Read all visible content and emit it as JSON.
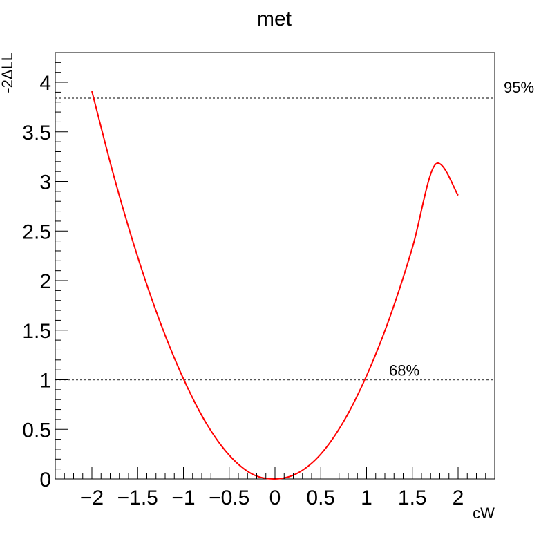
{
  "chart_data": {
    "type": "line",
    "title": "met",
    "xlabel": "cW",
    "ylabel": "-2ΔLL",
    "xlim": [
      -2.4,
      2.4
    ],
    "ylim": [
      0,
      4.3
    ],
    "x_ticks": [
      -2,
      -1.5,
      -1,
      -0.5,
      0,
      0.5,
      1,
      1.5,
      2
    ],
    "x_tick_labels": [
      "−2",
      "−1.5",
      "−1",
      "−0.5",
      "0",
      "0.5",
      "1",
      "1.5",
      "2"
    ],
    "y_ticks": [
      0,
      0.5,
      1,
      1.5,
      2,
      2.5,
      3,
      3.5,
      4
    ],
    "y_tick_labels": [
      "0",
      "0.5",
      "1",
      "1.5",
      "2",
      "2.5",
      "3",
      "3.5",
      "4"
    ],
    "grid": false,
    "series": [
      {
        "color": "#ff0000",
        "x": [
          -2.0,
          -1.75,
          -1.5,
          -1.25,
          -1.0,
          -0.75,
          -0.5,
          -0.25,
          0.0,
          0.25,
          0.5,
          0.75,
          1.0,
          1.25,
          1.5,
          1.75,
          2.0
        ],
        "y": [
          3.91,
          3.02,
          2.24,
          1.57,
          1.01,
          0.56,
          0.24,
          0.05,
          0.0,
          0.06,
          0.25,
          0.58,
          1.04,
          1.62,
          2.33,
          3.17,
          2.86
        ]
      }
    ],
    "reference_lines": [
      {
        "y": 3.84,
        "label": "95%",
        "color": "#555555",
        "style": "dashed"
      },
      {
        "y": 1.0,
        "label": "68%",
        "color": "#555555",
        "style": "dashed"
      }
    ]
  }
}
